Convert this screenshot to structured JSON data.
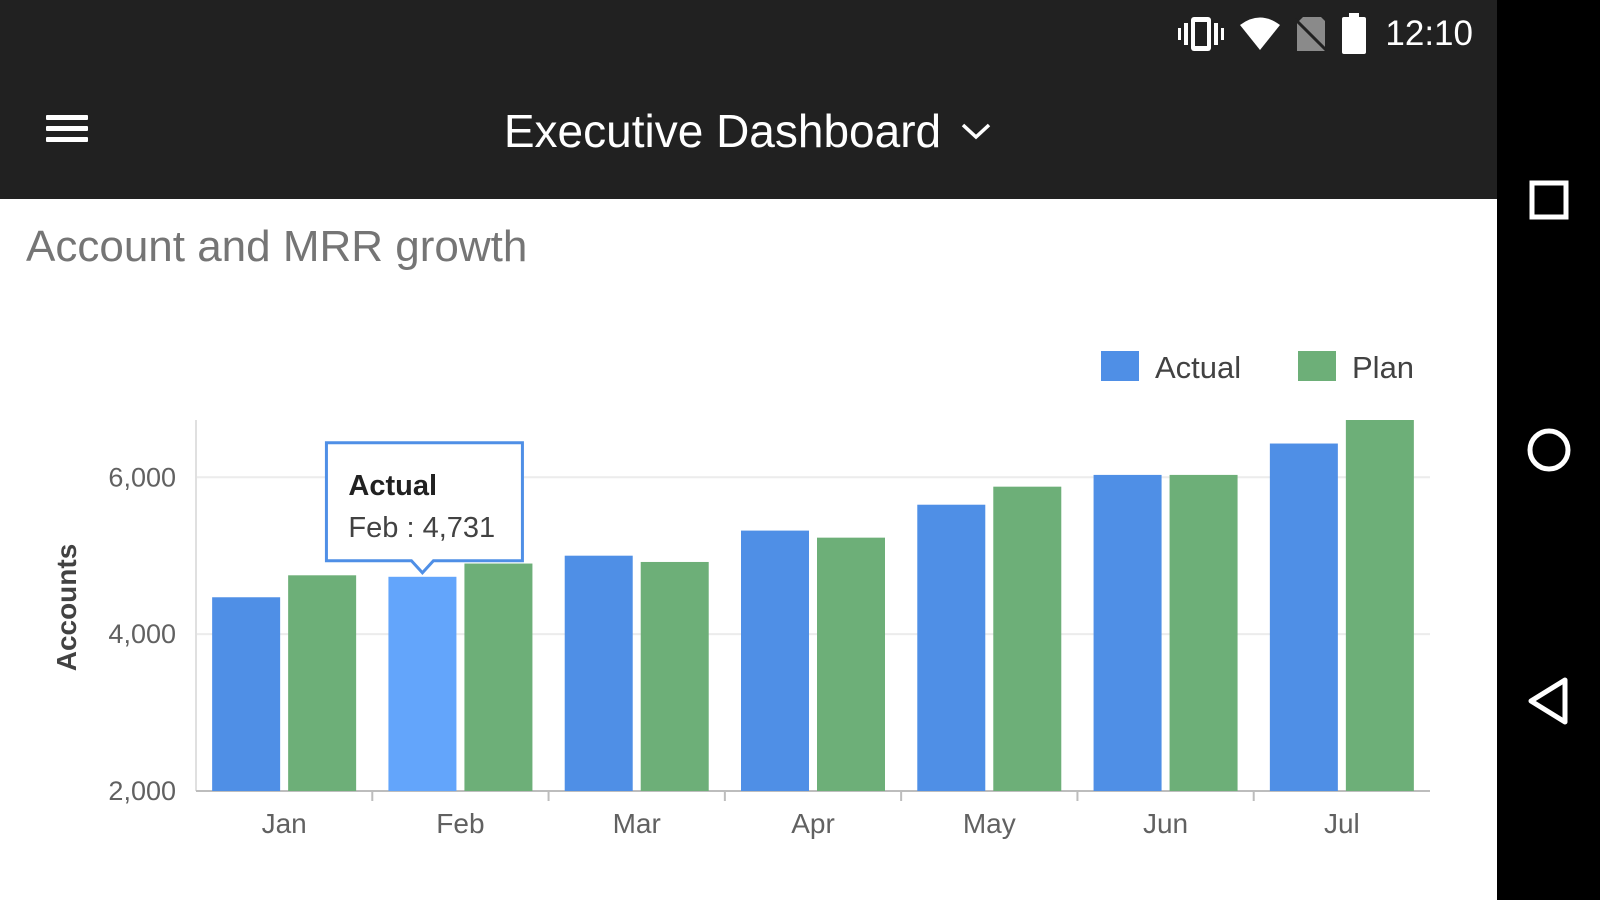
{
  "status_bar": {
    "time": "12:10",
    "icons": [
      "vibrate-icon",
      "wifi-icon",
      "no-sim-icon",
      "battery-icon"
    ]
  },
  "app_bar": {
    "title": "Executive Dashboard",
    "menu_icon": "hamburger-menu-icon",
    "dropdown_icon": "chevron-down-icon"
  },
  "card": {
    "title": "Account and MRR growth"
  },
  "tooltip": {
    "series": "Actual",
    "text": "Feb : 4,731"
  },
  "colors": {
    "actual": "#4f8fe6",
    "actual_highlight": "#63a5fb",
    "plan": "#6daf78",
    "app_bar": "#212121"
  },
  "nav_bar": {
    "icons": [
      "recents-square-icon",
      "home-circle-icon",
      "back-triangle-icon"
    ]
  },
  "chart_data": {
    "type": "bar",
    "categories": [
      "Jan",
      "Feb",
      "Mar",
      "Apr",
      "May",
      "Jun",
      "Jul"
    ],
    "series": [
      {
        "name": "Actual",
        "values": [
          4470,
          4731,
          5000,
          5320,
          5650,
          6030,
          6430
        ]
      },
      {
        "name": "Plan",
        "values": [
          4750,
          4900,
          4920,
          5230,
          5880,
          6030,
          6730
        ]
      }
    ],
    "title": "Account and MRR growth",
    "xlabel": "",
    "ylabel": "Accounts",
    "ylim": [
      2000,
      6730
    ],
    "yticks": [
      2000,
      4000,
      6000
    ],
    "ytick_labels": [
      "2,000",
      "4,000",
      "6,000"
    ],
    "legend": [
      "Actual",
      "Plan"
    ],
    "legend_position": "top-right",
    "grid": true,
    "highlighted": {
      "series": "Actual",
      "category": "Feb"
    }
  }
}
